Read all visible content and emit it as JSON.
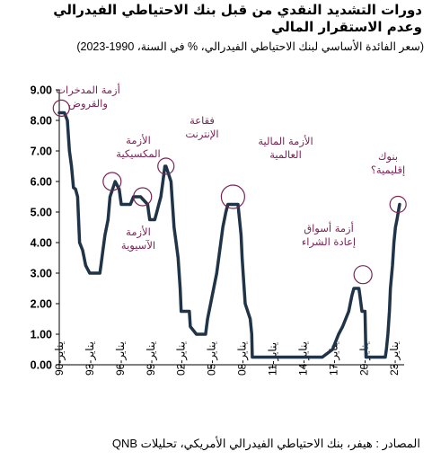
{
  "title_line1": "دورات التشديد النقدي من قبل بنك الاحتياطي الفيدرالي",
  "title_line2": "وعدم الاستقرار المالي",
  "subtitle": "(سعر الفائدة الأساسي لبنك الاحتياطي الفيدرالي، % في السنة، 1990-2023)",
  "source": "المصادر : هيفر، بنك الاحتياطي الفيدرالي الأمريكي، تحليلات QNB",
  "colors": {
    "line": "#1f3349",
    "annotation": "#7b2453",
    "axis": "#000000"
  },
  "chart_data": {
    "type": "line",
    "title": "دورات التشديد النقدي من قبل بنك الاحتياطي الفيدرالي وعدم الاستقرار المالي",
    "ylim": [
      0,
      9
    ],
    "xlim": [
      1990,
      2023.6
    ],
    "yticks": [
      "0.00",
      "1.00",
      "2.00",
      "3.00",
      "4.00",
      "5.00",
      "6.00",
      "7.00",
      "8.00",
      "9.00"
    ],
    "xticks": [
      {
        "value": 1990,
        "label": "يناير-90"
      },
      {
        "value": 1993,
        "label": "يناير-93"
      },
      {
        "value": 1996,
        "label": "يناير-96"
      },
      {
        "value": 1999,
        "label": "يناير-99"
      },
      {
        "value": 2002,
        "label": "يناير-02"
      },
      {
        "value": 2005,
        "label": "يناير-05"
      },
      {
        "value": 2008,
        "label": "يناير-08"
      },
      {
        "value": 2011,
        "label": "يناير-11"
      },
      {
        "value": 2014,
        "label": "يناير-14"
      },
      {
        "value": 2017,
        "label": "يناير-17"
      },
      {
        "value": 2020,
        "label": "يناير-20"
      },
      {
        "value": 2023,
        "label": "يناير-23"
      }
    ],
    "series": [
      {
        "x": [
          1990.0,
          1990.5,
          1990.8,
          1991.0,
          1991.2,
          1991.4,
          1991.6,
          1991.8,
          1992.0,
          1992.3,
          1992.6,
          1993.0,
          1993.5,
          1994.0,
          1994.1,
          1994.3,
          1994.5,
          1994.8,
          1995.0,
          1995.5,
          1995.9,
          1996.1,
          1997.0,
          1997.3,
          1998.0,
          1998.7,
          1998.8,
          1998.9,
          1999.4,
          1999.6,
          1999.8,
          2000.0,
          2000.2,
          2000.4,
          2000.5,
          2001.0,
          2001.1,
          2001.3,
          2001.5,
          2001.7,
          2001.9,
          2002.0,
          2002.8,
          2002.9,
          2003.5,
          2004.4,
          2004.6,
          2004.9,
          2005.2,
          2005.5,
          2005.8,
          2006.1,
          2006.4,
          2006.6,
          2007.6,
          2007.75,
          2007.9,
          2008.0,
          2008.1,
          2008.3,
          2008.8,
          2008.95,
          2009.0,
          2015.9,
          2016.9,
          2017.2,
          2017.5,
          2017.9,
          2018.2,
          2018.5,
          2018.8,
          2019.0,
          2019.5,
          2019.6,
          2019.8,
          2020.1,
          2020.2,
          2022.1,
          2022.2,
          2022.35,
          2022.5,
          2022.6,
          2022.8,
          2022.95,
          2023.1,
          2023.25,
          2023.5
        ],
        "values": [
          8.25,
          8.25,
          8.0,
          7.0,
          6.5,
          5.8,
          5.75,
          5.5,
          4.0,
          3.75,
          3.25,
          3.0,
          3.0,
          3.0,
          3.25,
          3.75,
          4.25,
          4.75,
          5.5,
          6.0,
          5.75,
          5.25,
          5.25,
          5.5,
          5.5,
          5.25,
          5.0,
          4.75,
          4.75,
          5.0,
          5.25,
          5.5,
          6.0,
          6.5,
          6.5,
          6.0,
          5.5,
          4.5,
          4.0,
          3.5,
          2.5,
          1.75,
          1.75,
          1.25,
          1.0,
          1.0,
          1.5,
          2.0,
          2.5,
          3.0,
          3.75,
          4.5,
          5.0,
          5.25,
          5.25,
          4.75,
          4.25,
          3.5,
          3.0,
          2.0,
          1.5,
          1.0,
          0.25,
          0.25,
          0.5,
          0.75,
          1.0,
          1.25,
          1.5,
          1.75,
          2.25,
          2.5,
          2.5,
          2.25,
          1.75,
          1.75,
          0.25,
          0.25,
          0.5,
          1.0,
          1.75,
          2.5,
          3.25,
          4.0,
          4.5,
          4.75,
          5.25
        ]
      }
    ],
    "annotations": [
      {
        "lines": [
          "أزمة المدخرات",
          "والقروض"
        ],
        "circle": {
          "x": 1990.2,
          "y": 8.4
        }
      },
      {
        "lines": [
          "الأزمة",
          "المكسيكية"
        ],
        "circle": {
          "x": 1995.2,
          "y": 6.0
        }
      },
      {
        "lines": [
          "الأزمة",
          "الآسيوية"
        ],
        "circle": {
          "x": 1998.2,
          "y": 5.5
        }
      },
      {
        "lines": [
          "فقاعة",
          "الإنترنت"
        ],
        "circle": {
          "x": 2000.5,
          "y": 6.5
        }
      },
      {
        "lines": [
          "الأزمة المالية",
          "العالمية"
        ],
        "circle": {
          "x": 2007.1,
          "y": 5.5
        }
      },
      {
        "lines": [
          "أزمة أسواق",
          "إعادة الشراء"
        ],
        "circle": {
          "x": 2019.9,
          "y": 2.95
        }
      },
      {
        "lines": [
          "بنوك",
          "إقليمية؟"
        ],
        "circle": {
          "x": 2023.35,
          "y": 5.25
        }
      }
    ]
  }
}
